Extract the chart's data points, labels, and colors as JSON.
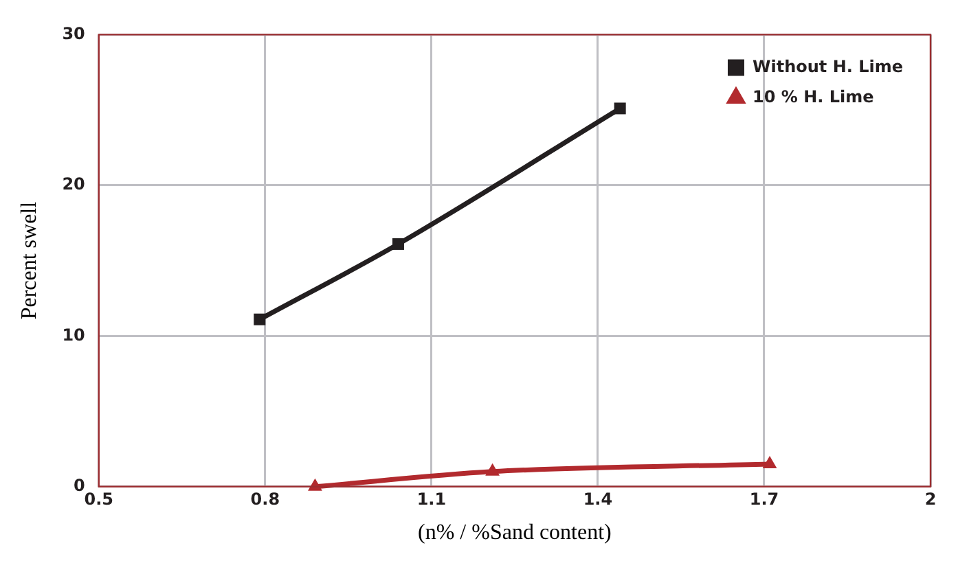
{
  "chart_data": {
    "type": "line",
    "xlabel": "(n% / %Sand content)",
    "ylabel": "Percent swell",
    "xlim": [
      0.5,
      2
    ],
    "xticks": [
      0.5,
      0.8,
      1.1,
      1.4,
      1.7,
      2
    ],
    "ylim": [
      0,
      30
    ],
    "yticks": [
      0,
      10,
      20,
      30
    ],
    "grid": true,
    "legend": "top right",
    "series": [
      {
        "name": "Without H. Lime",
        "color": "#231f20",
        "marker": "square",
        "x": [
          0.79,
          1.04,
          1.44
        ],
        "values": [
          11.1,
          16.1,
          25.1
        ]
      },
      {
        "name": "10 % H. Lime",
        "color": "#b22a2e",
        "marker": "triangle",
        "x": [
          0.89,
          1.21,
          1.71
        ],
        "values": [
          0,
          1,
          1.5
        ]
      }
    ]
  }
}
